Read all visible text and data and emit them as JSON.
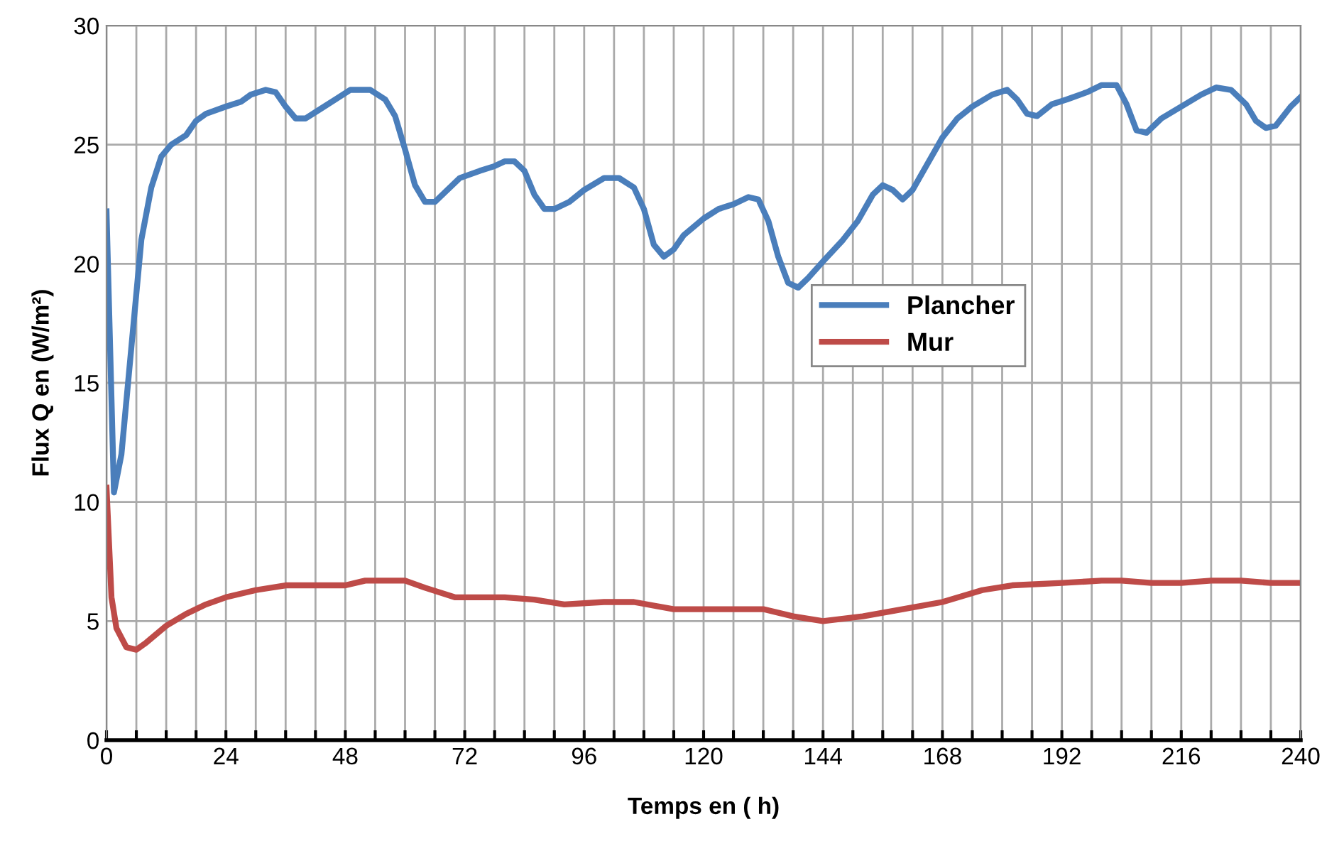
{
  "chart_data": {
    "type": "line",
    "xlabel": "Temps en ( h)",
    "ylabel": "Flux Q en (W/m²)",
    "xlim": [
      0,
      240
    ],
    "ylim": [
      0,
      30
    ],
    "xticks": [
      0,
      {
        "value": 6,
        "label": null
      },
      {
        "value": 12,
        "label": null
      },
      {
        "value": 18,
        "label": null
      },
      24,
      {
        "value": 30,
        "label": null
      },
      {
        "value": 36,
        "label": null
      },
      {
        "value": 42,
        "label": null
      },
      48,
      {
        "value": 54,
        "label": null
      },
      {
        "value": 60,
        "label": null
      },
      {
        "value": 66,
        "label": null
      },
      72,
      {
        "value": 78,
        "label": null
      },
      {
        "value": 84,
        "label": null
      },
      {
        "value": 90,
        "label": null
      },
      96,
      {
        "value": 102,
        "label": null
      },
      {
        "value": 108,
        "label": null
      },
      {
        "value": 114,
        "label": null
      },
      120,
      {
        "value": 126,
        "label": null
      },
      {
        "value": 132,
        "label": null
      },
      {
        "value": 138,
        "label": null
      },
      144,
      {
        "value": 150,
        "label": null
      },
      {
        "value": 156,
        "label": null
      },
      {
        "value": 162,
        "label": null
      },
      168,
      {
        "value": 174,
        "label": null
      },
      {
        "value": 180,
        "label": null
      },
      {
        "value": 186,
        "label": null
      },
      192,
      {
        "value": 198,
        "label": null
      },
      {
        "value": 204,
        "label": null
      },
      {
        "value": 210,
        "label": null
      },
      216,
      {
        "value": 222,
        "label": null
      },
      {
        "value": 228,
        "label": null
      },
      {
        "value": 234,
        "label": null
      },
      240
    ],
    "yticks": [
      0,
      5,
      10,
      15,
      20,
      25,
      30
    ],
    "grid": true,
    "legend": "right",
    "marker": "none",
    "line_style": "solid",
    "series": [
      {
        "name": "Plancher",
        "color": "#4a7ebb",
        "x": [
          0,
          1.5,
          3,
          5,
          7,
          9,
          11,
          13,
          16,
          18,
          20,
          24,
          27,
          29,
          32,
          34,
          36,
          38,
          40,
          43,
          46,
          49,
          53,
          56,
          58,
          60,
          62,
          64,
          66,
          68,
          71,
          75,
          78,
          80,
          82,
          84,
          86,
          88,
          90,
          93,
          96,
          100,
          103,
          106,
          108,
          110,
          112,
          114,
          116,
          120,
          123,
          126,
          129,
          131,
          133,
          135,
          137,
          139,
          141,
          144,
          148,
          151,
          154,
          156,
          158,
          160,
          162,
          165,
          168,
          171,
          174,
          178,
          181,
          183,
          185,
          187,
          190,
          193,
          197,
          200,
          203,
          205,
          207,
          209,
          212,
          216,
          220,
          223,
          226,
          229,
          231,
          233,
          235,
          238,
          240
        ],
        "values": [
          22.2,
          10.4,
          12,
          16.5,
          21,
          23.2,
          24.5,
          25,
          25.4,
          26,
          26.3,
          26.6,
          26.8,
          27.1,
          27.3,
          27.2,
          26.6,
          26.1,
          26.1,
          26.5,
          26.9,
          27.3,
          27.3,
          26.9,
          26.2,
          24.8,
          23.3,
          22.6,
          22.6,
          23,
          23.6,
          23.9,
          24.1,
          24.3,
          24.3,
          23.9,
          22.9,
          22.3,
          22.3,
          22.6,
          23.1,
          23.6,
          23.6,
          23.2,
          22.3,
          20.8,
          20.3,
          20.6,
          21.2,
          21.9,
          22.3,
          22.5,
          22.8,
          22.7,
          21.8,
          20.3,
          19.2,
          19,
          19.4,
          20.1,
          21,
          21.8,
          22.9,
          23.3,
          23.1,
          22.7,
          23.1,
          24.2,
          25.3,
          26.1,
          26.6,
          27.1,
          27.3,
          26.9,
          26.3,
          26.2,
          26.7,
          26.9,
          27.2,
          27.5,
          27.5,
          26.7,
          25.6,
          25.5,
          26.1,
          26.6,
          27.1,
          27.4,
          27.3,
          26.7,
          26,
          25.7,
          25.8,
          26.6,
          27
        ]
      },
      {
        "name": "Mur",
        "color": "#be4b48",
        "x": [
          0,
          1,
          2,
          4,
          6,
          8,
          12,
          16,
          20,
          24,
          30,
          36,
          48,
          52,
          60,
          64,
          70,
          80,
          86,
          92,
          100,
          106,
          114,
          124,
          132,
          138,
          144,
          152,
          160,
          168,
          176,
          182,
          192,
          200,
          204,
          210,
          216,
          222,
          228,
          234,
          240
        ],
        "values": [
          10.6,
          6,
          4.7,
          3.9,
          3.8,
          4.1,
          4.8,
          5.3,
          5.7,
          6,
          6.3,
          6.5,
          6.5,
          6.7,
          6.7,
          6.4,
          6,
          6,
          5.9,
          5.7,
          5.8,
          5.8,
          5.5,
          5.5,
          5.5,
          5.2,
          5,
          5.2,
          5.5,
          5.8,
          6.3,
          6.5,
          6.6,
          6.7,
          6.7,
          6.6,
          6.6,
          6.7,
          6.7,
          6.6,
          6.6
        ]
      }
    ]
  }
}
